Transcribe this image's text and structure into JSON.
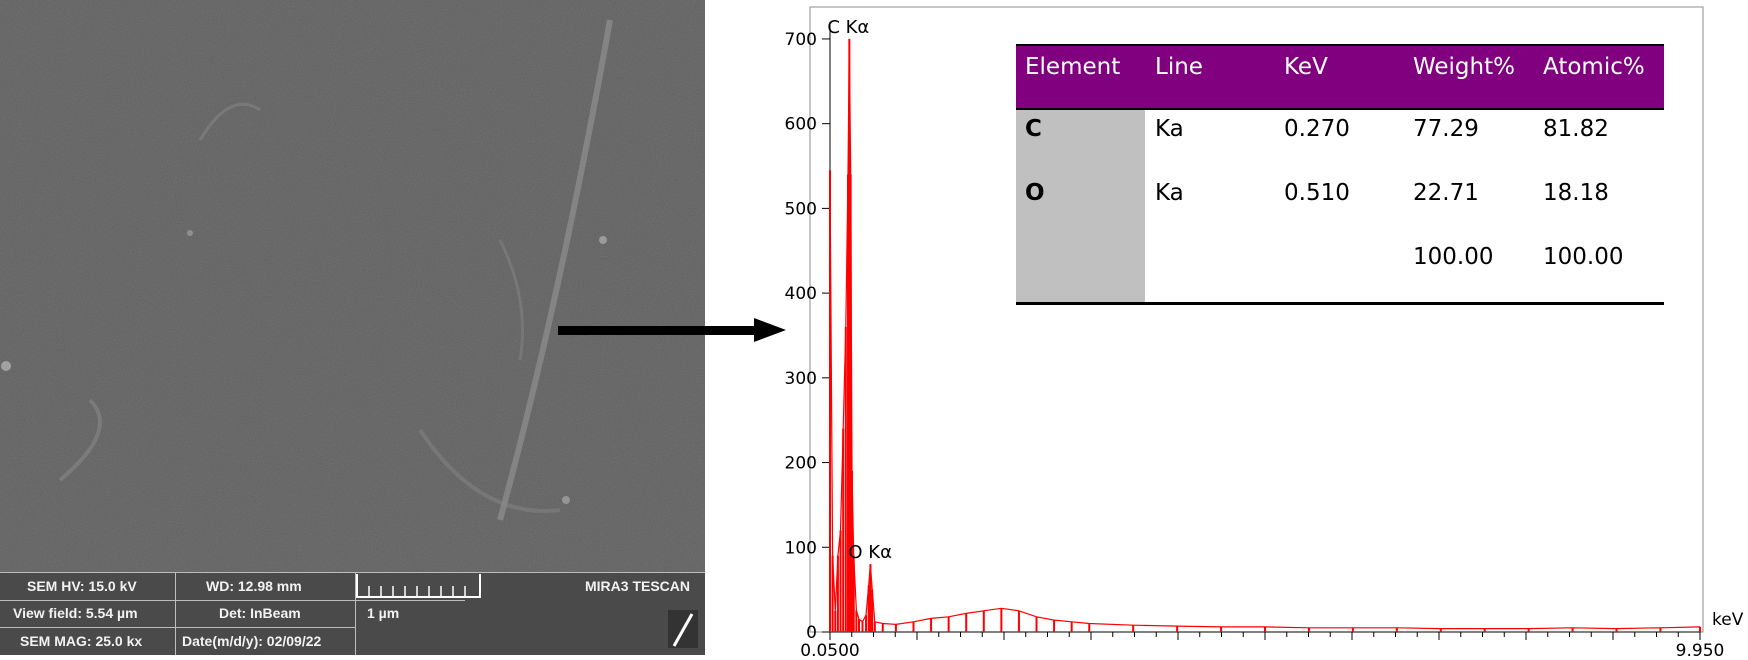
{
  "sem_panel": {
    "hv": "SEM HV: 15.0 kV",
    "wd": "WD: 12.98 mm",
    "brand": "MIRA3 TESCAN",
    "view_field": "View field: 5.54 µm",
    "detector": "Det: InBeam",
    "scale": "1 µm",
    "mag": "SEM MAG: 25.0 kx",
    "date": "Date(m/d/y): 02/09/22"
  },
  "chart_data": {
    "type": "bar",
    "xlabel": "keV",
    "ylabel": "",
    "x_tick_labels": [
      "0.0500",
      "9.950"
    ],
    "xlim": [
      0.05,
      9.95
    ],
    "ylim": [
      0,
      720
    ],
    "y_ticks": [
      0,
      100,
      200,
      300,
      400,
      500,
      600,
      700
    ],
    "peak_labels": [
      {
        "text": "C Kα",
        "x": 0.27,
        "y": 700
      },
      {
        "text": "O Kα",
        "x": 0.51,
        "y": 80
      }
    ],
    "spectrum": [
      [
        0.05,
        545
      ],
      [
        0.08,
        90
      ],
      [
        0.11,
        25
      ],
      [
        0.14,
        90
      ],
      [
        0.17,
        120
      ],
      [
        0.2,
        240
      ],
      [
        0.23,
        360
      ],
      [
        0.255,
        540
      ],
      [
        0.27,
        700
      ],
      [
        0.285,
        540
      ],
      [
        0.3,
        190
      ],
      [
        0.32,
        90
      ],
      [
        0.35,
        25
      ],
      [
        0.38,
        15
      ],
      [
        0.42,
        12
      ],
      [
        0.46,
        20
      ],
      [
        0.49,
        55
      ],
      [
        0.51,
        80
      ],
      [
        0.53,
        50
      ],
      [
        0.56,
        12
      ],
      [
        0.65,
        10
      ],
      [
        0.8,
        9
      ],
      [
        1.0,
        12
      ],
      [
        1.2,
        16
      ],
      [
        1.4,
        18
      ],
      [
        1.6,
        22
      ],
      [
        1.8,
        25
      ],
      [
        2.0,
        28
      ],
      [
        2.2,
        25
      ],
      [
        2.4,
        18
      ],
      [
        2.6,
        14
      ],
      [
        2.8,
        12
      ],
      [
        3.0,
        10
      ],
      [
        3.5,
        8
      ],
      [
        4.0,
        7
      ],
      [
        4.5,
        6
      ],
      [
        5.0,
        6
      ],
      [
        5.5,
        5
      ],
      [
        6.0,
        5
      ],
      [
        6.5,
        5
      ],
      [
        7.0,
        4
      ],
      [
        7.5,
        4
      ],
      [
        8.0,
        4
      ],
      [
        8.5,
        5
      ],
      [
        9.0,
        4
      ],
      [
        9.5,
        5
      ],
      [
        9.95,
        6
      ]
    ],
    "table": {
      "headers": [
        "Element",
        "Line",
        "KeV",
        "Weight%",
        "Atomic%"
      ],
      "rows": [
        [
          "C",
          "Ka",
          "0.270",
          "77.29",
          "81.82"
        ],
        [
          "O",
          "Ka",
          "0.510",
          "22.71",
          "18.18"
        ],
        [
          "",
          "",
          "",
          "100.00",
          "100.00"
        ]
      ]
    },
    "grid": false,
    "legend": "none"
  },
  "colors": {
    "spectrum": "#ff0000",
    "table_header": "#800080",
    "table_gray": "#c0c0c0"
  }
}
